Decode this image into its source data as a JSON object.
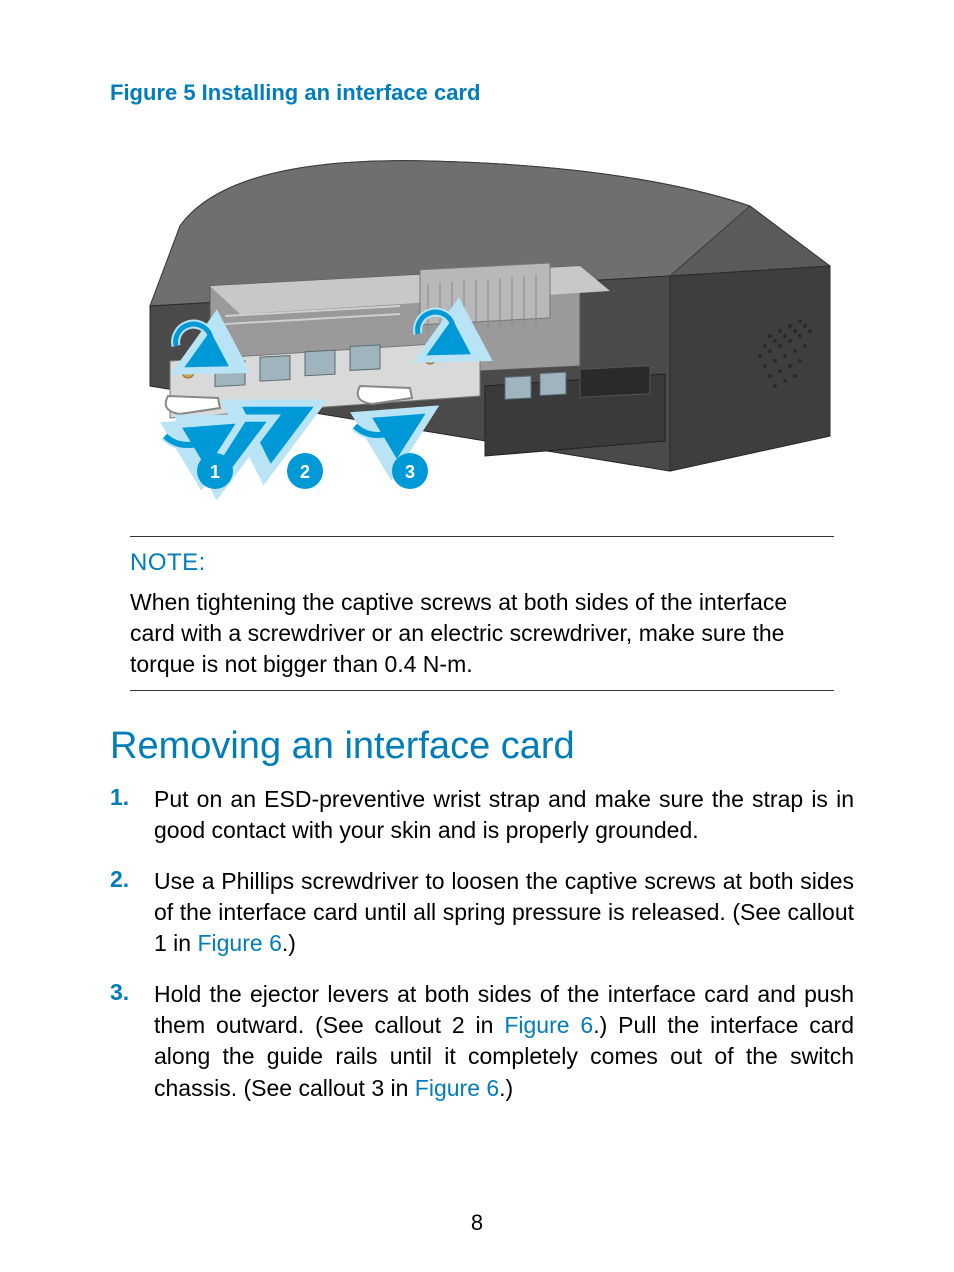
{
  "colors": {
    "accent": "#007dba",
    "text": "#000000",
    "callout_fill": "#0099d8",
    "device_dark": "#4a4a4a",
    "device_mid": "#6f6f6f",
    "device_light": "#a9a9a9",
    "device_top": "#5a5a5a",
    "heatsink": "#b8b8b8",
    "arrow": "#0099d8",
    "arrow_shadow": "#b9e4f6",
    "port_outline": "#8fa0a8",
    "screw": "#d0a24a"
  },
  "figure": {
    "caption": "Figure 5 Installing an interface card",
    "callouts": [
      "1",
      "2",
      "3"
    ],
    "type": "technical-illustration"
  },
  "note": {
    "label": "NOTE:",
    "text": "When tightening the captive screws at both sides of the interface card with a screwdriver or an electric screwdriver, make sure the torque is not bigger than 0.4 N-m."
  },
  "section": {
    "heading": "Removing an interface card",
    "steps": [
      {
        "num": "1.",
        "parts": [
          {
            "t": "Put on an ESD-preventive wrist strap and make sure the strap is in good contact with your skin and is properly grounded."
          }
        ]
      },
      {
        "num": "2.",
        "parts": [
          {
            "t": "Use a Phillips screwdriver to loosen the captive screws at both sides of the interface card until all spring pressure is released. (See callout 1 in "
          },
          {
            "t": "Figure 6",
            "link": true
          },
          {
            "t": ".)"
          }
        ]
      },
      {
        "num": "3.",
        "parts": [
          {
            "t": "Hold the ejector levers at both sides of the interface card and push them outward. (See callout 2 in "
          },
          {
            "t": "Figure 6",
            "link": true
          },
          {
            "t": ".) Pull the interface card along the guide rails until it completely comes out of the switch chassis. (See callout 3 in "
          },
          {
            "t": "Figure 6",
            "link": true
          },
          {
            "t": ".)"
          }
        ]
      }
    ]
  },
  "page_number": "8"
}
